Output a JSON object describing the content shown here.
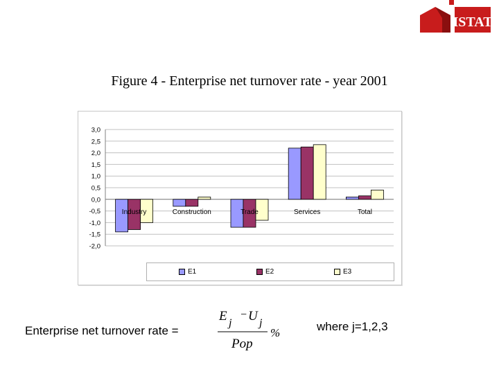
{
  "logo": {
    "text": "ISTAT",
    "brand_color": "#d01818"
  },
  "title": "Figure 4 - Enterprise net turnover rate - year 2001",
  "chart_data": {
    "type": "bar",
    "categories": [
      "Industry",
      "Construction",
      "Trade",
      "Services",
      "Total"
    ],
    "series": [
      {
        "name": "E1",
        "color": "#9999ff",
        "values": [
          -1.4,
          -0.3,
          -1.2,
          2.2,
          0.1
        ]
      },
      {
        "name": "E2",
        "color": "#993366",
        "values": [
          -1.3,
          -0.3,
          -1.2,
          2.25,
          0.15
        ]
      },
      {
        "name": "E3",
        "color": "#ffffcc",
        "values": [
          -1.0,
          0.1,
          -0.9,
          2.35,
          0.4
        ]
      }
    ],
    "ylim": [
      -2.0,
      3.0
    ],
    "y_ticks": [
      "3,0",
      "2,5",
      "2,0",
      "1,5",
      "1,0",
      "0,5",
      "0,0",
      "-0,5",
      "-1,0",
      "-1,5",
      "-2,0"
    ],
    "grid": true,
    "legend": "bottom",
    "plot_background": "#ffffff",
    "gridline_color": "#c0c0c0"
  },
  "formula": {
    "label": "Enterprise net turnover rate =",
    "numerator_left": "E",
    "numerator_right": "U",
    "minus": "−",
    "subscript": "j",
    "denominator": "Pop",
    "percent": "%"
  },
  "where_text": "where j=1,2,3"
}
